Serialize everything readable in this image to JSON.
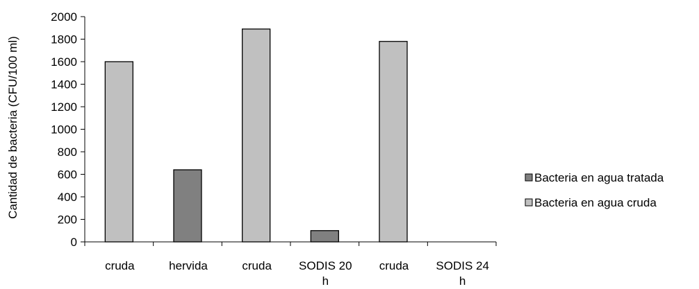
{
  "chart_data": {
    "type": "bar",
    "title": "",
    "xlabel": "",
    "ylabel": "Cantidad de bacteria (CFU/100 ml)",
    "ylim": [
      0,
      2000
    ],
    "yticks": [
      0,
      200,
      400,
      600,
      800,
      1000,
      1200,
      1400,
      1600,
      1800,
      2000
    ],
    "categories": [
      [
        "cruda"
      ],
      [
        "hervida"
      ],
      [
        "cruda"
      ],
      [
        "SODIS 20",
        "h"
      ],
      [
        "cruda"
      ],
      [
        "SODIS 24",
        "h"
      ]
    ],
    "bars": [
      {
        "series": "Bacteria en agua cruda",
        "value": 1600
      },
      {
        "series": "Bacteria en agua tratada",
        "value": 640
      },
      {
        "series": "Bacteria en agua cruda",
        "value": 1890
      },
      {
        "series": "Bacteria en agua tratada",
        "value": 100
      },
      {
        "series": "Bacteria en agua cruda",
        "value": 1780
      },
      {
        "series": "Bacteria en agua tratada",
        "value": 0
      }
    ],
    "series": [
      {
        "name": "Bacteria en agua tratada",
        "color": "#808080"
      },
      {
        "name": "Bacteria en agua cruda",
        "color": "#c0c0c0"
      }
    ],
    "grid": false,
    "legend_position": "right"
  }
}
